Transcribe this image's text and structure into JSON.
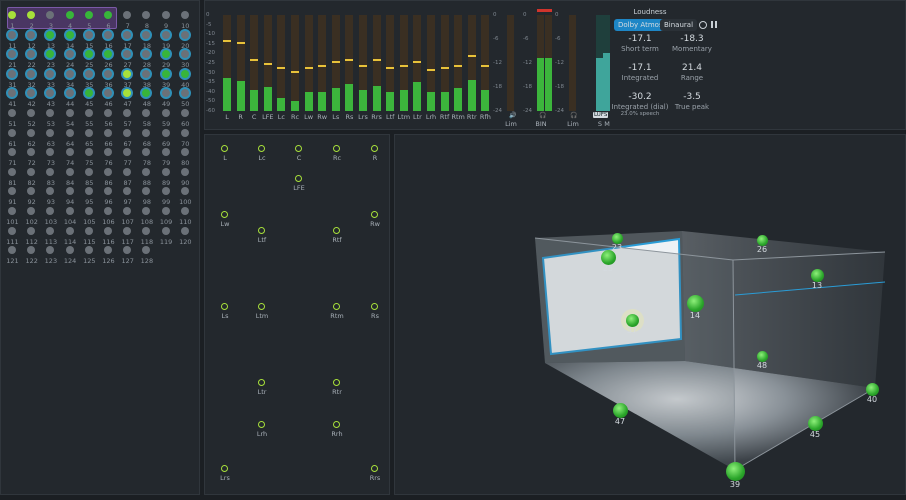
{
  "objects": {
    "items": [
      {
        "n": "1",
        "s": "lime"
      },
      {
        "n": "2",
        "s": "lime"
      },
      {
        "n": "3",
        "s": "grey"
      },
      {
        "n": "4",
        "s": "green"
      },
      {
        "n": "5",
        "s": "green"
      },
      {
        "n": "6",
        "s": "green"
      },
      {
        "n": "7",
        "s": "grey"
      },
      {
        "n": "8",
        "s": "grey"
      },
      {
        "n": "9",
        "s": "grey"
      },
      {
        "n": "10",
        "s": "grey"
      },
      {
        "n": "11",
        "s": "ring"
      },
      {
        "n": "12",
        "s": "ring"
      },
      {
        "n": "13",
        "s": "ring-green"
      },
      {
        "n": "14",
        "s": "ring-green"
      },
      {
        "n": "15",
        "s": "ring"
      },
      {
        "n": "16",
        "s": "ring"
      },
      {
        "n": "17",
        "s": "ring"
      },
      {
        "n": "18",
        "s": "ring"
      },
      {
        "n": "19",
        "s": "ring"
      },
      {
        "n": "20",
        "s": "ring"
      },
      {
        "n": "21",
        "s": "ring"
      },
      {
        "n": "22",
        "s": "ring"
      },
      {
        "n": "23",
        "s": "ring-green"
      },
      {
        "n": "24",
        "s": "ring"
      },
      {
        "n": "25",
        "s": "ring-green"
      },
      {
        "n": "26",
        "s": "ring-green"
      },
      {
        "n": "27",
        "s": "ring"
      },
      {
        "n": "28",
        "s": "ring"
      },
      {
        "n": "29",
        "s": "ring-green"
      },
      {
        "n": "30",
        "s": "ring"
      },
      {
        "n": "31",
        "s": "ring"
      },
      {
        "n": "32",
        "s": "ring"
      },
      {
        "n": "33",
        "s": "ring"
      },
      {
        "n": "34",
        "s": "ring"
      },
      {
        "n": "35",
        "s": "ring"
      },
      {
        "n": "36",
        "s": "ring"
      },
      {
        "n": "37",
        "s": "ring-lime"
      },
      {
        "n": "38",
        "s": "ring"
      },
      {
        "n": "39",
        "s": "ring-green"
      },
      {
        "n": "40",
        "s": "ring-green"
      },
      {
        "n": "41",
        "s": "ring"
      },
      {
        "n": "42",
        "s": "ring"
      },
      {
        "n": "43",
        "s": "ring"
      },
      {
        "n": "44",
        "s": "ring"
      },
      {
        "n": "45",
        "s": "ring-green"
      },
      {
        "n": "46",
        "s": "ring"
      },
      {
        "n": "47",
        "s": "ring-lime"
      },
      {
        "n": "48",
        "s": "ring-green"
      },
      {
        "n": "49",
        "s": "ring"
      },
      {
        "n": "50",
        "s": "ring"
      },
      {
        "n": "51",
        "s": "grey"
      },
      {
        "n": "52",
        "s": "grey"
      },
      {
        "n": "53",
        "s": "grey"
      },
      {
        "n": "54",
        "s": "grey"
      },
      {
        "n": "55",
        "s": "grey"
      },
      {
        "n": "56",
        "s": "grey"
      },
      {
        "n": "57",
        "s": "grey"
      },
      {
        "n": "58",
        "s": "grey"
      },
      {
        "n": "59",
        "s": "grey"
      },
      {
        "n": "60",
        "s": "grey"
      },
      {
        "n": "61",
        "s": "grey"
      },
      {
        "n": "62",
        "s": "grey"
      },
      {
        "n": "63",
        "s": "grey"
      },
      {
        "n": "64",
        "s": "grey"
      },
      {
        "n": "65",
        "s": "grey"
      },
      {
        "n": "66",
        "s": "grey"
      },
      {
        "n": "67",
        "s": "grey"
      },
      {
        "n": "68",
        "s": "grey"
      },
      {
        "n": "69",
        "s": "grey"
      },
      {
        "n": "70",
        "s": "grey"
      },
      {
        "n": "71",
        "s": "grey"
      },
      {
        "n": "72",
        "s": "grey"
      },
      {
        "n": "73",
        "s": "grey"
      },
      {
        "n": "74",
        "s": "grey"
      },
      {
        "n": "75",
        "s": "grey"
      },
      {
        "n": "76",
        "s": "grey"
      },
      {
        "n": "77",
        "s": "grey"
      },
      {
        "n": "78",
        "s": "grey"
      },
      {
        "n": "79",
        "s": "grey"
      },
      {
        "n": "80",
        "s": "grey"
      },
      {
        "n": "81",
        "s": "grey"
      },
      {
        "n": "82",
        "s": "grey"
      },
      {
        "n": "83",
        "s": "grey"
      },
      {
        "n": "84",
        "s": "grey"
      },
      {
        "n": "85",
        "s": "grey"
      },
      {
        "n": "86",
        "s": "grey"
      },
      {
        "n": "87",
        "s": "grey"
      },
      {
        "n": "88",
        "s": "grey"
      },
      {
        "n": "89",
        "s": "grey"
      },
      {
        "n": "90",
        "s": "grey"
      },
      {
        "n": "91",
        "s": "grey"
      },
      {
        "n": "92",
        "s": "grey"
      },
      {
        "n": "93",
        "s": "grey"
      },
      {
        "n": "94",
        "s": "grey"
      },
      {
        "n": "95",
        "s": "grey"
      },
      {
        "n": "96",
        "s": "grey"
      },
      {
        "n": "97",
        "s": "grey"
      },
      {
        "n": "98",
        "s": "grey"
      },
      {
        "n": "99",
        "s": "grey"
      },
      {
        "n": "100",
        "s": "grey"
      },
      {
        "n": "101",
        "s": "grey"
      },
      {
        "n": "102",
        "s": "grey"
      },
      {
        "n": "103",
        "s": "grey"
      },
      {
        "n": "104",
        "s": "grey"
      },
      {
        "n": "105",
        "s": "grey"
      },
      {
        "n": "106",
        "s": "grey"
      },
      {
        "n": "107",
        "s": "grey"
      },
      {
        "n": "108",
        "s": "grey"
      },
      {
        "n": "109",
        "s": "grey"
      },
      {
        "n": "110",
        "s": "grey"
      },
      {
        "n": "111",
        "s": "grey"
      },
      {
        "n": "112",
        "s": "grey"
      },
      {
        "n": "113",
        "s": "grey"
      },
      {
        "n": "114",
        "s": "grey"
      },
      {
        "n": "115",
        "s": "grey"
      },
      {
        "n": "116",
        "s": "grey"
      },
      {
        "n": "117",
        "s": "grey"
      },
      {
        "n": "118",
        "s": "grey"
      },
      {
        "n": "119",
        "s": "grey"
      },
      {
        "n": "120",
        "s": "grey"
      },
      {
        "n": "121",
        "s": "grey"
      },
      {
        "n": "122",
        "s": "grey"
      },
      {
        "n": "123",
        "s": "grey"
      },
      {
        "n": "124",
        "s": "grey"
      },
      {
        "n": "125",
        "s": "grey"
      },
      {
        "n": "126",
        "s": "grey"
      },
      {
        "n": "127",
        "s": "grey"
      },
      {
        "n": "128",
        "s": "grey"
      }
    ]
  },
  "meters": {
    "scale": [
      "0",
      "-5",
      "-10",
      "-15",
      "-20",
      "-25",
      "-30",
      "-35",
      "-40",
      "-50",
      "-60"
    ],
    "channels": [
      {
        "label": "L",
        "level": 0.34,
        "peak": 0.72
      },
      {
        "label": "R",
        "level": 0.31,
        "peak": 0.7
      },
      {
        "label": "C",
        "level": 0.22,
        "peak": 0.52
      },
      {
        "label": "LFE",
        "level": 0.25,
        "peak": 0.48
      },
      {
        "label": "Lc",
        "level": 0.14,
        "peak": 0.44
      },
      {
        "label": "Rc",
        "level": 0.1,
        "peak": 0.4
      },
      {
        "label": "Lw",
        "level": 0.2,
        "peak": 0.44
      },
      {
        "label": "Rw",
        "level": 0.2,
        "peak": 0.46
      },
      {
        "label": "Ls",
        "level": 0.24,
        "peak": 0.5
      },
      {
        "label": "Rs",
        "level": 0.28,
        "peak": 0.52
      },
      {
        "label": "Lrs",
        "level": 0.22,
        "peak": 0.46
      },
      {
        "label": "Rrs",
        "level": 0.26,
        "peak": 0.52
      },
      {
        "label": "Ltf",
        "level": 0.2,
        "peak": 0.44
      },
      {
        "label": "Ltm",
        "level": 0.22,
        "peak": 0.46
      },
      {
        "label": "Ltr",
        "level": 0.3,
        "peak": 0.5
      },
      {
        "label": "Lrh",
        "level": 0.2,
        "peak": 0.42
      },
      {
        "label": "Rtf",
        "level": 0.2,
        "peak": 0.44
      },
      {
        "label": "Rtm",
        "level": 0.24,
        "peak": 0.46
      },
      {
        "label": "Rtr",
        "level": 0.32,
        "peak": 0.56
      },
      {
        "label": "Rfh",
        "level": 0.22,
        "peak": 0.46
      }
    ],
    "lim_scale": [
      "0",
      "-6",
      "-12",
      "-18",
      "-24"
    ],
    "lim1_label": "Lim",
    "bin_label": "BIN",
    "lim2_label": "Lim",
    "lufs_label": "LUFS",
    "s_label": "S",
    "m_label": "M",
    "lim1_level": 0.0,
    "bin_left": 0.55,
    "bin_right": 0.55,
    "lim2_level": 0.0,
    "lufs_s": 0.55,
    "lufs_m": 0.6
  },
  "loudness": {
    "title": "Loudness",
    "mode_active": "Dolby Atmos",
    "mode_other": "Binaural",
    "short_term": "-17.1",
    "short_term_label": "Short term",
    "momentary": "-18.3",
    "momentary_label": "Momentary",
    "integrated": "-17.1",
    "integrated_label": "Integrated",
    "range": "21.4",
    "range_label": "Range",
    "integrated_dial": "-30.2",
    "integrated_dial_label": "Integrated (dial)",
    "speech": "23.0% speech",
    "true_peak": "-3.5",
    "true_peak_label": "True peak"
  },
  "speakers": [
    {
      "label": "L"
    },
    {
      "label": "Lc"
    },
    {
      "label": "C"
    },
    {
      "label": "Rc"
    },
    {
      "label": "R"
    },
    {
      "label": "LFE"
    },
    {
      "label": "Lw"
    },
    {
      "label": "Rw"
    },
    {
      "label": "Ltf"
    },
    {
      "label": "Rtf"
    },
    {
      "label": "Ls"
    },
    {
      "label": "Ltm"
    },
    {
      "label": "Rtm"
    },
    {
      "label": "Rs"
    },
    {
      "label": "Ltr"
    },
    {
      "label": "Rtr"
    },
    {
      "label": "Lrh"
    },
    {
      "label": "Rrh"
    },
    {
      "label": "Lrs"
    },
    {
      "label": "Rrs"
    }
  ],
  "room_objects": [
    {
      "label": "23"
    },
    {
      "label": "26"
    },
    {
      "label": "25"
    },
    {
      "label": "13"
    },
    {
      "label": "14"
    },
    {
      "label": "37"
    },
    {
      "label": "48"
    },
    {
      "label": "40"
    },
    {
      "label": "47"
    },
    {
      "label": "45"
    },
    {
      "label": "39"
    }
  ]
}
